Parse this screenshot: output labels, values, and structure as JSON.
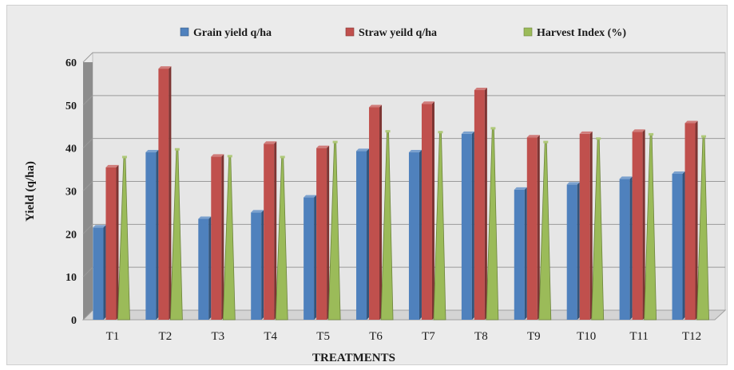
{
  "chart_data": {
    "type": "bar",
    "title": "",
    "xlabel": "TREATMENTS",
    "ylabel": "Yield (q/ha)",
    "ylim": [
      0,
      60
    ],
    "yticks": [
      0,
      10,
      20,
      30,
      40,
      50,
      60
    ],
    "grid": true,
    "legend_position": "top",
    "categories": [
      "T1",
      "T2",
      "T3",
      "T4",
      "T5",
      "T6",
      "T7",
      "T8",
      "T9",
      "T10",
      "T11",
      "T12"
    ],
    "series": [
      {
        "name": "Grain yield q/ha",
        "color": "#4f81bd",
        "values": [
          21.5,
          39.0,
          23.5,
          25.0,
          28.5,
          39.3,
          39.0,
          43.3,
          30.3,
          31.5,
          32.8,
          34.0
        ]
      },
      {
        "name": "Straw yeild q/ha",
        "color": "#c0504d",
        "values": [
          35.5,
          58.5,
          38.0,
          41.0,
          40.0,
          49.5,
          50.3,
          53.5,
          42.5,
          43.3,
          43.8,
          45.8
        ]
      },
      {
        "name": "Harvest Index (%)",
        "color": "#9bbb59",
        "values": [
          38.0,
          39.8,
          38.2,
          38.0,
          41.5,
          44.0,
          43.8,
          44.7,
          41.5,
          42.3,
          43.3,
          42.8
        ]
      }
    ]
  }
}
